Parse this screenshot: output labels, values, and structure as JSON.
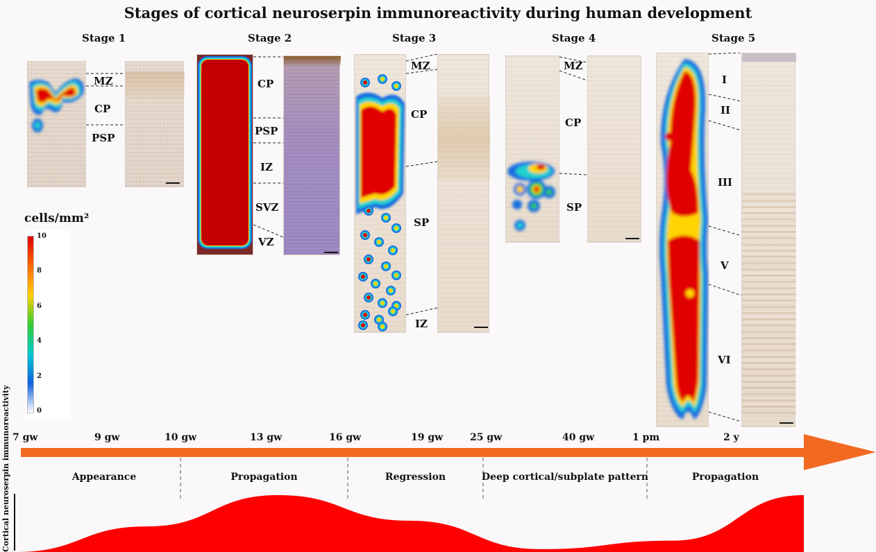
{
  "title": "Stages of cortical neuroserpin immunoreactivity during human development",
  "stages": [
    {
      "label": "Stage 1",
      "layers": [
        "MZ",
        "CP",
        "PSP"
      ]
    },
    {
      "label": "Stage 2",
      "layers": [
        "CP",
        "PSP",
        "IZ",
        "SVZ",
        "VZ"
      ]
    },
    {
      "label": "Stage 3",
      "layers": [
        "MZ",
        "CP",
        "SP",
        "IZ"
      ]
    },
    {
      "label": "Stage 4",
      "layers": [
        "MZ",
        "CP",
        "SP"
      ]
    },
    {
      "label": "Stage 5",
      "layers": [
        "I",
        "II",
        "III",
        "V",
        "VI"
      ]
    }
  ],
  "colorbar": {
    "label": "cells/mm²",
    "ticks": [
      "10",
      "8",
      "6",
      "4",
      "2",
      "0"
    ],
    "colors": [
      "#e00000",
      "#ff6a00",
      "#ffd000",
      "#33cc33",
      "#00c8d0",
      "#1060e0",
      "#ffffff"
    ]
  },
  "timeline": {
    "ticks": [
      "7 gw",
      "9 gw",
      "10 gw",
      "13 gw",
      "16 gw",
      "19 gw",
      "25 gw",
      "40 gw",
      "1 pm",
      "2 y"
    ],
    "arrow_color": "#f26a22"
  },
  "phases": [
    "Appearance",
    "Propagation",
    "Regression",
    "Deep cortical/subplate pattern",
    "Propagation"
  ],
  "profile": {
    "axis_label": "Cortical neuroserpin immunoreactivity",
    "fill_color": "#ff0000",
    "levels": [
      0.0,
      0.45,
      1.0,
      0.55,
      0.05,
      0.2,
      1.0
    ]
  }
}
